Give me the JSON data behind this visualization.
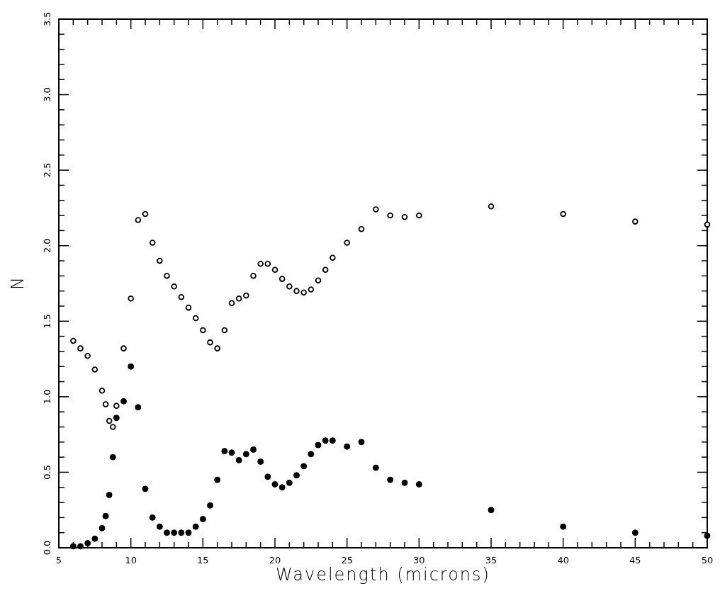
{
  "chart_data": {
    "type": "scatter",
    "xlabel": "Wavelength (microns)",
    "ylabel": "N",
    "xlim": [
      5,
      50
    ],
    "ylim": [
      0,
      3.5
    ],
    "marker": "circle",
    "grid": false,
    "xticks": [
      5,
      {
        "value": 6,
        "label": null
      },
      {
        "value": 7,
        "label": null
      },
      {
        "value": 8,
        "label": null
      },
      {
        "value": 9,
        "label": null
      },
      10,
      {
        "value": 11,
        "label": null
      },
      {
        "value": 12,
        "label": null
      },
      {
        "value": 13,
        "label": null
      },
      {
        "value": 14,
        "label": null
      },
      15,
      {
        "value": 16,
        "label": null
      },
      {
        "value": 17,
        "label": null
      },
      {
        "value": 18,
        "label": null
      },
      {
        "value": 19,
        "label": null
      },
      20,
      {
        "value": 21,
        "label": null
      },
      {
        "value": 22,
        "label": null
      },
      {
        "value": 23,
        "label": null
      },
      {
        "value": 24,
        "label": null
      },
      25,
      {
        "value": 26,
        "label": null
      },
      {
        "value": 27,
        "label": null
      },
      {
        "value": 28,
        "label": null
      },
      {
        "value": 29,
        "label": null
      },
      30,
      {
        "value": 31,
        "label": null
      },
      {
        "value": 32,
        "label": null
      },
      {
        "value": 33,
        "label": null
      },
      {
        "value": 34,
        "label": null
      },
      35,
      {
        "value": 36,
        "label": null
      },
      {
        "value": 37,
        "label": null
      },
      {
        "value": 38,
        "label": null
      },
      {
        "value": 39,
        "label": null
      },
      40,
      {
        "value": 41,
        "label": null
      },
      {
        "value": 42,
        "label": null
      },
      {
        "value": 43,
        "label": null
      },
      {
        "value": 44,
        "label": null
      },
      45,
      {
        "value": 46,
        "label": null
      },
      {
        "value": 47,
        "label": null
      },
      {
        "value": 48,
        "label": null
      },
      {
        "value": 49,
        "label": null
      },
      50
    ],
    "yticks": [
      {
        "value": 0,
        "label": "0.0"
      },
      {
        "value": 0.1,
        "label": null
      },
      {
        "value": 0.2,
        "label": null
      },
      {
        "value": 0.3,
        "label": null
      },
      {
        "value": 0.4,
        "label": null
      },
      0.5,
      {
        "value": 0.6,
        "label": null
      },
      {
        "value": 0.7,
        "label": null
      },
      {
        "value": 0.8,
        "label": null
      },
      {
        "value": 0.9,
        "label": null
      },
      {
        "value": 1,
        "label": "1.0"
      },
      {
        "value": 1.1,
        "label": null
      },
      {
        "value": 1.2,
        "label": null
      },
      {
        "value": 1.3,
        "label": null
      },
      {
        "value": 1.4,
        "label": null
      },
      1.5,
      {
        "value": 1.6,
        "label": null
      },
      {
        "value": 1.7,
        "label": null
      },
      {
        "value": 1.8,
        "label": null
      },
      {
        "value": 1.9,
        "label": null
      },
      {
        "value": 2,
        "label": "2.0"
      },
      {
        "value": 2.1,
        "label": null
      },
      {
        "value": 2.2,
        "label": null
      },
      {
        "value": 2.3,
        "label": null
      },
      {
        "value": 2.4,
        "label": null
      },
      2.5,
      {
        "value": 2.6,
        "label": null
      },
      {
        "value": 2.7,
        "label": null
      },
      {
        "value": 2.8,
        "label": null
      },
      {
        "value": 2.9,
        "label": null
      },
      {
        "value": 3,
        "label": "3.0"
      },
      {
        "value": 3.1,
        "label": null
      },
      {
        "value": 3.2,
        "label": null
      },
      {
        "value": 3.3,
        "label": null
      },
      {
        "value": 3.4,
        "label": null
      },
      3.5
    ],
    "series": [
      {
        "color": "#000000",
        "x": [
          6,
          6.5,
          7,
          7.5,
          8,
          8.25,
          8.5,
          8.75,
          9,
          9.5,
          10,
          10.5,
          11,
          11.5,
          12,
          12.5,
          13,
          13.5,
          14,
          14.5,
          15,
          15.5,
          16,
          16.5,
          17,
          17.5,
          18,
          18.5,
          19,
          19.5,
          20,
          20.5,
          21,
          21.5,
          22,
          22.5,
          23,
          23.5,
          24,
          25,
          26,
          27,
          28,
          29,
          30,
          35,
          40,
          45,
          50
        ],
        "values": [
          1.37,
          1.32,
          1.27,
          1.18,
          1.04,
          0.95,
          0.84,
          0.8,
          0.94,
          1.32,
          1.65,
          2.17,
          2.21,
          2.02,
          1.9,
          1.8,
          1.73,
          1.66,
          1.59,
          1.52,
          1.44,
          1.36,
          1.32,
          1.44,
          1.62,
          1.65,
          1.67,
          1.8,
          1.88,
          1.88,
          1.84,
          1.78,
          1.73,
          1.7,
          1.69,
          1.71,
          1.77,
          1.84,
          1.92,
          2.02,
          2.11,
          2.24,
          2.2,
          2.19,
          2.2,
          2.26,
          2.21,
          2.16,
          2.14
        ]
      },
      {
        "color": "#000000",
        "x": [
          6,
          6.5,
          7,
          7.5,
          8,
          8.25,
          8.5,
          8.75,
          9,
          9.5,
          10,
          10.5,
          11,
          11.5,
          12,
          12.5,
          13,
          13.5,
          14,
          14.5,
          15,
          15.5,
          16,
          16.5,
          17,
          17.5,
          18,
          18.5,
          19,
          19.5,
          20,
          20.5,
          21,
          21.5,
          22,
          22.5,
          23,
          23.5,
          24,
          25,
          26,
          27,
          28,
          29,
          30,
          35,
          40,
          45,
          50
        ],
        "values": [
          0.01,
          0.01,
          0.03,
          0.06,
          0.13,
          0.21,
          0.35,
          0.6,
          0.86,
          0.97,
          1.2,
          0.93,
          0.39,
          0.2,
          0.14,
          0.1,
          0.1,
          0.1,
          0.1,
          0.14,
          0.19,
          0.28,
          0.45,
          0.64,
          0.63,
          0.58,
          0.62,
          0.65,
          0.57,
          0.47,
          0.42,
          0.4,
          0.43,
          0.48,
          0.54,
          0.62,
          0.68,
          0.71,
          0.71,
          0.67,
          0.7,
          0.53,
          0.45,
          0.43,
          0.42,
          0.25,
          0.14,
          0.1,
          0.08
        ]
      }
    ]
  }
}
